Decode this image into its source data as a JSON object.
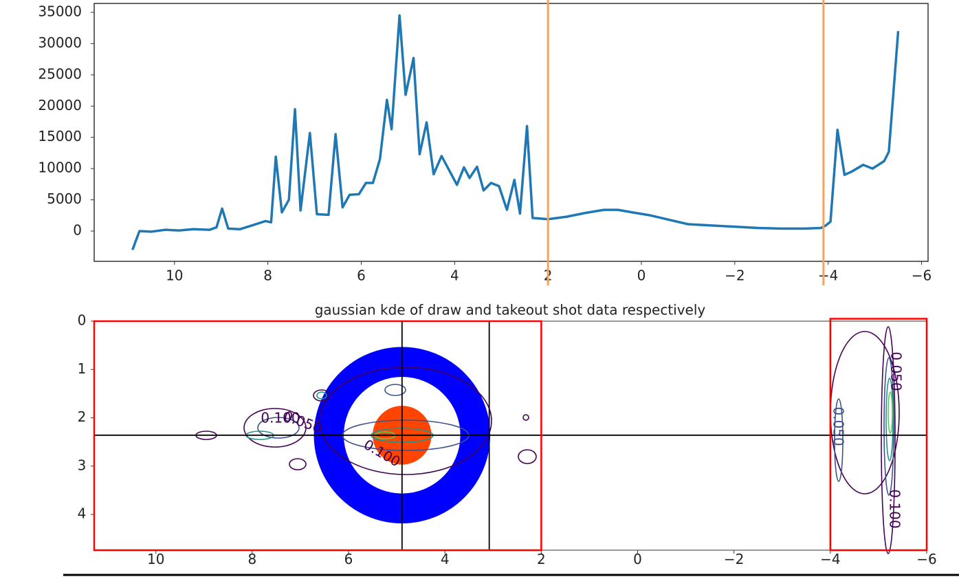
{
  "chart_data": [
    {
      "type": "line",
      "color": "#1f77b4",
      "x": [
        10.9,
        10.75,
        10.5,
        10.2,
        9.9,
        9.6,
        9.25,
        9.1,
        8.98,
        8.85,
        8.6,
        8.3,
        8.05,
        7.93,
        7.83,
        7.7,
        7.55,
        7.42,
        7.3,
        7.1,
        6.95,
        6.7,
        6.55,
        6.4,
        6.25,
        6.05,
        5.9,
        5.75,
        5.6,
        5.45,
        5.35,
        5.18,
        5.05,
        4.88,
        4.75,
        4.6,
        4.45,
        4.28,
        4.1,
        3.95,
        3.8,
        3.68,
        3.52,
        3.38,
        3.22,
        3.05,
        2.88,
        2.72,
        2.6,
        2.45,
        2.33,
        2.0,
        1.6,
        1.2,
        0.8,
        0.5,
        0.2,
        -0.2,
        -0.6,
        -1.0,
        -1.5,
        -2.0,
        -2.5,
        -3.0,
        -3.5,
        -3.85,
        -3.95,
        -4.05,
        -4.2,
        -4.35,
        -4.5,
        -4.75,
        -4.95,
        -5.2,
        -5.3,
        -5.5
      ],
      "values": [
        -3000,
        0,
        -100,
        200,
        100,
        300,
        200,
        600,
        3600,
        400,
        300,
        1000,
        1600,
        1400,
        11900,
        3000,
        5000,
        19500,
        3300,
        15700,
        2700,
        2600,
        15500,
        3800,
        5800,
        5900,
        7700,
        7700,
        11500,
        21000,
        16300,
        34500,
        21800,
        27700,
        12300,
        17400,
        9100,
        12000,
        9500,
        7400,
        10200,
        8500,
        10300,
        6500,
        7700,
        7200,
        3400,
        8200,
        2800,
        16800,
        2100,
        1900,
        2300,
        2900,
        3400,
        3400,
        3000,
        2500,
        1800,
        1100,
        900,
        700,
        500,
        400,
        400,
        500,
        900,
        1500,
        16200,
        9000,
        9500,
        10600,
        10000,
        11200,
        12700,
        32000
      ],
      "xlim": [
        11.72,
        -6.14
      ],
      "ylim": [
        -4843,
        36430
      ],
      "xticks": [
        10,
        8,
        6,
        4,
        2,
        0,
        {
          "value": -2,
          "label": "−2"
        },
        {
          "value": -4,
          "label": "−4"
        },
        {
          "value": -6,
          "label": "−6"
        }
      ],
      "yticks": [
        0,
        5000,
        10000,
        15000,
        20000,
        25000,
        30000,
        35000
      ],
      "vlines": [
        2.0,
        -3.9
      ],
      "vline_color": "#f4a460"
    },
    {
      "type": "kde",
      "title": "gaussian kde of draw and takeout shot data respectively",
      "xlim": [
        11.28,
        -6
      ],
      "ylim": [
        0,
        4.74
      ],
      "y_inverted": true,
      "xticks": [
        10,
        8,
        6,
        4,
        2,
        0,
        {
          "value": -2,
          "label": "−2"
        },
        {
          "value": -4,
          "label": "−4"
        },
        {
          "value": -6,
          "label": "−6"
        }
      ],
      "yticks": [
        0,
        1,
        2,
        3,
        4
      ],
      "house": {
        "center": [
          4.89,
          2.36
        ],
        "outer_radius": 1.83,
        "inner_radius": 1.21,
        "button_radius": 0.61,
        "ring_color": "#0000ff",
        "button_color": "#ff4500"
      },
      "vlines": [
        4.89,
        3.08
      ],
      "hlines": [
        2.36
      ],
      "line_color": "#000000",
      "boxes": [
        {
          "xlim": [
            11.28,
            2
          ],
          "ylim": [
            0,
            4.74
          ]
        },
        {
          "xlim": [
            -4,
            -6
          ],
          "ylim": [
            -0.05,
            4.74
          ]
        }
      ],
      "box_color": "#ff0000",
      "contour_levels": [
        {
          "value": 0.05,
          "label": "0.050"
        },
        {
          "value": 0.1,
          "label": "0.100"
        }
      ]
    }
  ]
}
